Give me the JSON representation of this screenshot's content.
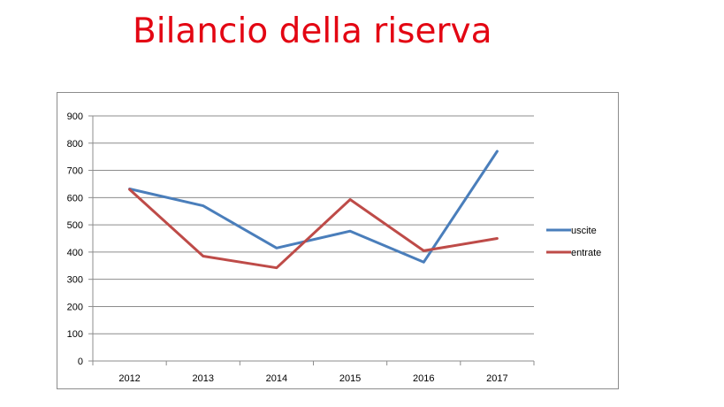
{
  "chart_data": {
    "type": "line",
    "title": "Bilancio della riserva",
    "categories": [
      "2012",
      "2013",
      "2014",
      "2015",
      "2016",
      "2017"
    ],
    "ylim": [
      0,
      900
    ],
    "yticks": [
      0,
      100,
      200,
      300,
      400,
      500,
      600,
      700,
      800,
      900
    ],
    "grid": true,
    "legend_position": "right",
    "series": [
      {
        "name": "uscite",
        "color": "#4a7ebb",
        "values": [
          632,
          570,
          415,
          477,
          363,
          770
        ]
      },
      {
        "name": "entrate",
        "color": "#be4b48",
        "values": [
          630,
          385,
          342,
          593,
          405,
          450
        ]
      }
    ]
  }
}
